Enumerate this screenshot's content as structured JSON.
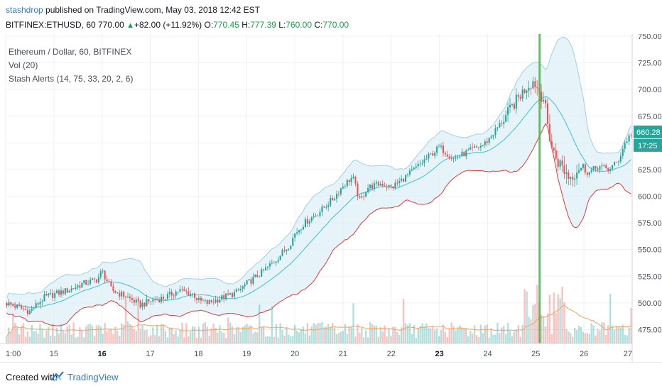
{
  "header": {
    "author": "stashdrop",
    "published_text": "published on TradingView.com, May 03, 2018 12:42 EST",
    "symbol": "BITFINEX:ETHUSD, 60",
    "last_price": "770.00",
    "change": "+82.00 (+11.92%)",
    "o_label": "O:",
    "o_value": "770.45",
    "h_label": "H:",
    "h_value": "777.39",
    "l_label": "L:",
    "l_value": "760.00",
    "c_label": "C:",
    "c_value": "770.00"
  },
  "legend": {
    "main": "Ethereum / Dollar, 60, BITFINEX",
    "volume": "Vol (20)",
    "indicator": "Stash Alerts (14, 75, 33, 20, 2, 6)"
  },
  "footer": {
    "created_with": "Created with",
    "brand": "TradingView"
  },
  "colors": {
    "up": "#26a69a",
    "down": "#ef5350",
    "band_fill": "#d9eef8",
    "band_line": "#9fcfe6",
    "midline": "#3bbfd6",
    "lower_line": "#e53935",
    "vol_ma": "#f4a460",
    "alert_line": "#4caf50",
    "price_badge": "#26a69a"
  },
  "chart_data": {
    "type": "candlestick",
    "ylim": [
      462,
      752
    ],
    "y_ticks": [
      475,
      500,
      525,
      550,
      575,
      600,
      625,
      650,
      675,
      700,
      725,
      750
    ],
    "y_tick_labels": [
      "475.00",
      "500.00",
      "525.00",
      "550.00",
      "575.00",
      "600.00",
      "625.00",
      "650.00",
      "675.00",
      "700.00",
      "725.00",
      "750.00"
    ],
    "x_ticks": [
      {
        "day": 14,
        "label": "1:00",
        "bold": false
      },
      {
        "day": 15,
        "label": "15",
        "bold": false
      },
      {
        "day": 16,
        "label": "16",
        "bold": true
      },
      {
        "day": 17,
        "label": "17",
        "bold": false
      },
      {
        "day": 18,
        "label": "18",
        "bold": false
      },
      {
        "day": 19,
        "label": "19",
        "bold": false
      },
      {
        "day": 20,
        "label": "20",
        "bold": false
      },
      {
        "day": 21,
        "label": "21",
        "bold": false
      },
      {
        "day": 22,
        "label": "22",
        "bold": false
      },
      {
        "day": 23,
        "label": "23",
        "bold": true
      },
      {
        "day": 24,
        "label": "24",
        "bold": false
      },
      {
        "day": 25,
        "label": "25",
        "bold": false
      },
      {
        "day": 26,
        "label": "26",
        "bold": false
      },
      {
        "day": 27,
        "label": "27",
        "bold": false
      }
    ],
    "x_range": [
      14,
      27
    ],
    "price_path": [
      [
        14.0,
        500
      ],
      [
        14.5,
        492
      ],
      [
        14.8,
        505
      ],
      [
        15.0,
        508
      ],
      [
        15.3,
        512
      ],
      [
        15.6,
        518
      ],
      [
        15.9,
        522
      ],
      [
        16.0,
        530
      ],
      [
        16.2,
        512
      ],
      [
        16.5,
        506
      ],
      [
        16.8,
        498
      ],
      [
        17.0,
        502
      ],
      [
        17.3,
        505
      ],
      [
        17.6,
        512
      ],
      [
        17.9,
        508
      ],
      [
        18.0,
        502
      ],
      [
        18.2,
        500
      ],
      [
        18.5,
        505
      ],
      [
        18.8,
        510
      ],
      [
        19.0,
        518
      ],
      [
        19.3,
        528
      ],
      [
        19.6,
        540
      ],
      [
        19.9,
        555
      ],
      [
        20.0,
        565
      ],
      [
        20.2,
        575
      ],
      [
        20.5,
        585
      ],
      [
        20.8,
        598
      ],
      [
        21.0,
        610
      ],
      [
        21.2,
        618
      ],
      [
        21.35,
        595
      ],
      [
        21.5,
        608
      ],
      [
        21.8,
        612
      ],
      [
        22.0,
        608
      ],
      [
        22.3,
        618
      ],
      [
        22.6,
        630
      ],
      [
        22.9,
        642
      ],
      [
        23.0,
        646
      ],
      [
        23.3,
        635
      ],
      [
        23.6,
        642
      ],
      [
        23.9,
        648
      ],
      [
        24.0,
        652
      ],
      [
        24.3,
        670
      ],
      [
        24.6,
        690
      ],
      [
        24.8,
        702
      ],
      [
        24.95,
        708
      ],
      [
        25.05,
        700
      ],
      [
        25.15,
        695
      ],
      [
        25.25,
        665
      ],
      [
        25.35,
        642
      ],
      [
        25.5,
        630
      ],
      [
        25.7,
        618
      ],
      [
        25.9,
        628
      ],
      [
        26.1,
        622
      ],
      [
        26.3,
        628
      ],
      [
        26.5,
        625
      ],
      [
        26.7,
        632
      ],
      [
        26.85,
        650
      ],
      [
        27.0,
        660
      ]
    ],
    "current_price": "660.28",
    "countdown": "17:25",
    "alert_line_day": 25.08
  }
}
